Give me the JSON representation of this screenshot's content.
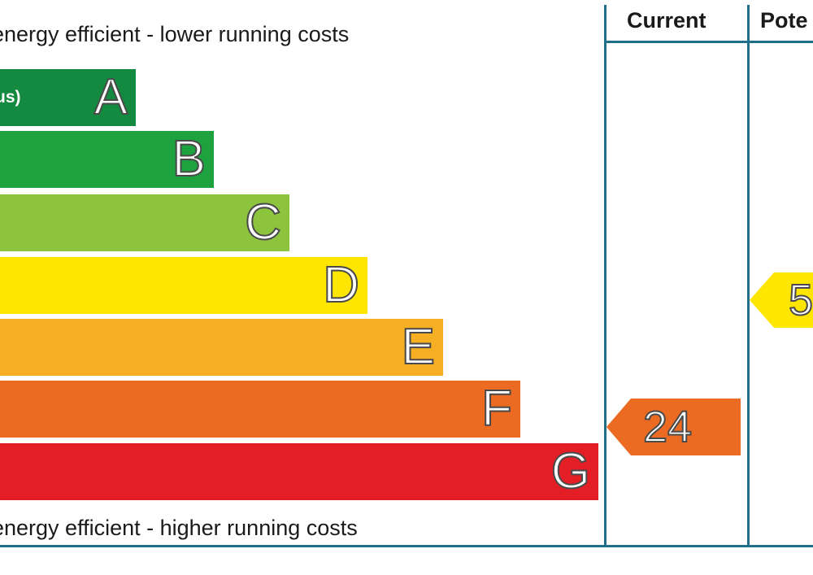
{
  "chart_data": {
    "type": "energy-rating",
    "top_caption": "energy efficient - lower running costs",
    "bottom_caption": "energy efficient - higher running costs",
    "columns": [
      "Current",
      "Pote"
    ],
    "bands": [
      {
        "letter": "A",
        "range": "us)",
        "color": "#138a3f",
        "order": 1
      },
      {
        "letter": "B",
        "range": ")",
        "color": "#1ea13f",
        "order": 2
      },
      {
        "letter": "C",
        "range": ")",
        "color": "#8dc43e",
        "order": 3
      },
      {
        "letter": "D",
        "range": ")",
        "color": "#ffe600",
        "order": 4
      },
      {
        "letter": "E",
        "range": "",
        "color": "#f6af23",
        "order": 5
      },
      {
        "letter": "F",
        "range": ")",
        "color": "#ec6b22",
        "order": 6
      },
      {
        "letter": "G",
        "range": "",
        "color": "#e41e25",
        "order": 7
      }
    ],
    "current": {
      "value": "24",
      "band": "F",
      "color": "#ec6b22"
    },
    "potential": {
      "value": "5",
      "band": "D",
      "color": "#ffe600"
    }
  }
}
